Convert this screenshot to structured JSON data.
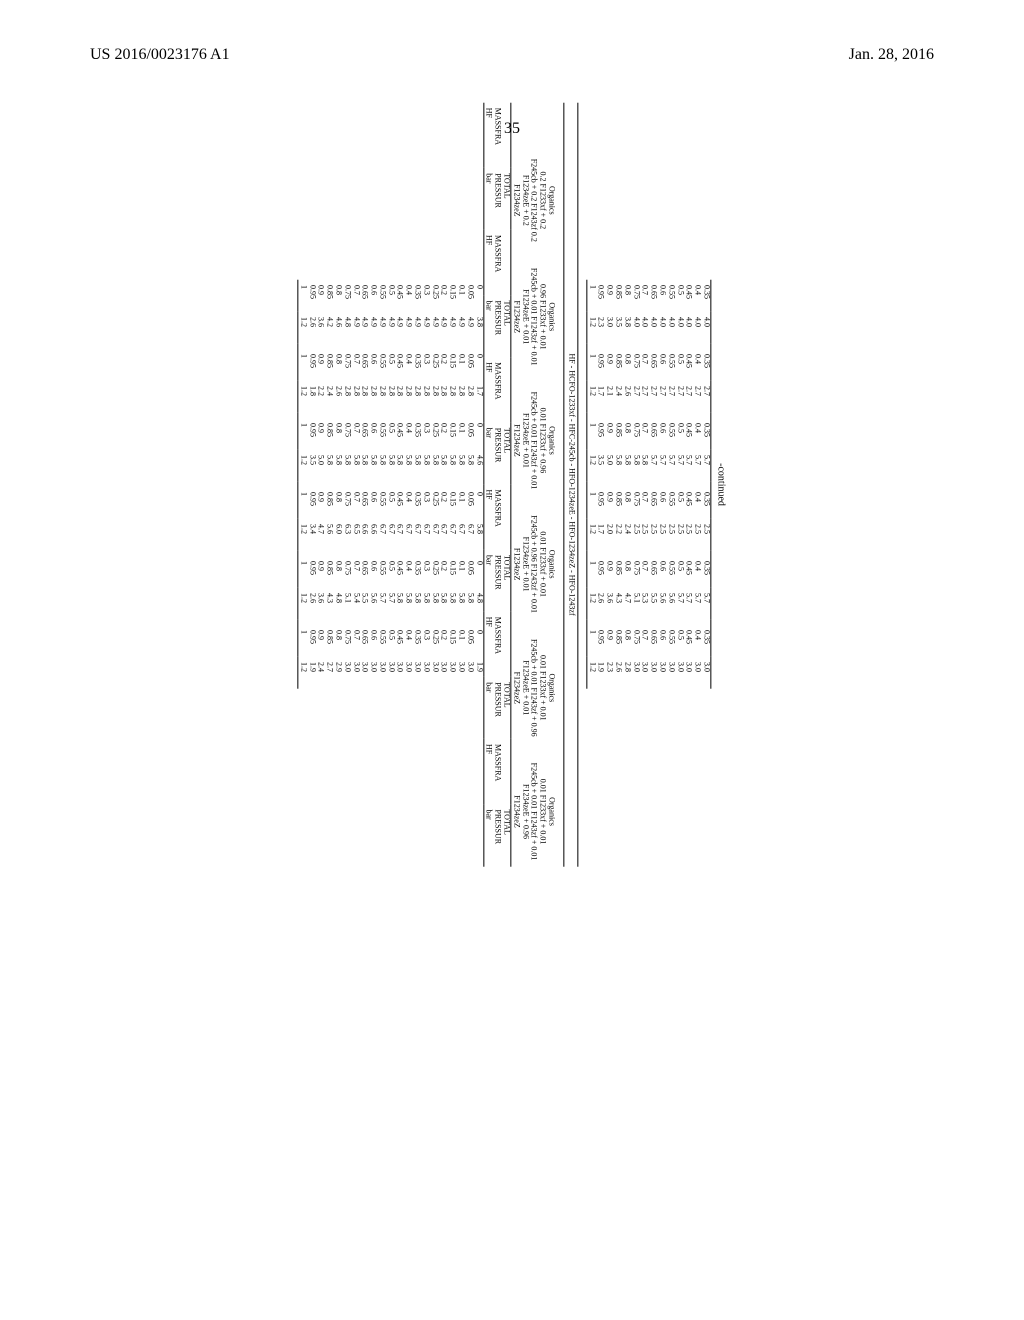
{
  "header": {
    "patent": "US 2016/0023176 A1",
    "date": "Jan. 28, 2016",
    "page": "35"
  },
  "labels": {
    "continued": "-continued",
    "section": "HF - HCFO-1233xf - HFC-245cb - HFO-1234zeE - HFO-1234zeZ - HFO-1243zf",
    "massfra": "MASSFRA",
    "hf": "HF",
    "total": "TOTAL",
    "pressur": "PRESSUR",
    "bar": "bar",
    "organics": "Organics"
  },
  "massfra_col": [
    "0.35",
    "0.4",
    "0.45",
    "0.5",
    "0.55",
    "0.6",
    "0.65",
    "0.7",
    "0.75",
    "0.8",
    "0.85",
    "0.9",
    "0.95",
    "1"
  ],
  "top": {
    "series": [
      [
        "4.0",
        "4.0",
        "4.0",
        "4.0",
        "4.0",
        "4.0",
        "4.0",
        "4.0",
        "4.0",
        "3.8",
        "3.5",
        "3.0",
        "2.3",
        "1.2"
      ],
      [
        "2.7",
        "2.7",
        "2.7",
        "2.7",
        "2.7",
        "2.7",
        "2.7",
        "2.7",
        "2.7",
        "2.6",
        "2.4",
        "2.1",
        "1.7",
        "1.2"
      ],
      [
        "5.7",
        "5.7",
        "5.7",
        "5.7",
        "5.7",
        "5.7",
        "5.7",
        "5.8",
        "5.8",
        "5.8",
        "5.8",
        "5.0",
        "3.5",
        "1.2"
      ],
      [
        "2.5",
        "2.5",
        "2.5",
        "2.5",
        "2.5",
        "2.5",
        "2.5",
        "2.5",
        "2.5",
        "2.4",
        "2.2",
        "2.0",
        "1.7",
        "1.2"
      ],
      [
        "5.7",
        "5.7",
        "5.7",
        "5.7",
        "5.6",
        "5.6",
        "5.5",
        "5.3",
        "5.1",
        "4.7",
        "4.3",
        "3.6",
        "2.6",
        "1.2"
      ],
      [
        "3.0",
        "3.0",
        "3.0",
        "3.0",
        "3.0",
        "3.0",
        "3.0",
        "3.0",
        "3.0",
        "2.8",
        "2.6",
        "2.3",
        "1.9",
        "1.2"
      ]
    ]
  },
  "organics": [
    {
      "l1": "0.2 F1233xf + 0.2",
      "l2": "F245cb + 0.2 F1243zf 0.2",
      "l3": "F1234zeE + 0.2",
      "l4": "F1234zeZ"
    },
    {
      "l1": "0.96 F1233xf + 0.01",
      "l2": "F245cb + 0.01 F1243zf + 0.01",
      "l3": "F1234zeE + 0.01",
      "l4": "F1234zeZ"
    },
    {
      "l1": "0.01 F1233xf + 0.96",
      "l2": "F245cb + 0.01 F1243zf + 0.01",
      "l3": "F1234zeE + 0.01",
      "l4": "F1234zeZ"
    },
    {
      "l1": "0.01 F1233xf + 0.01",
      "l2": "F245cb + 0.96 F1243zf + 0.01",
      "l3": "F1234zeE + 0.01",
      "l4": "F1234zeZ"
    },
    {
      "l1": "0.01 F1233xf + 0.01",
      "l2": "F245cb + 0.01 F1243zf + 0.96",
      "l3": "F1234zeE + 0.01",
      "l4": "F1234zeZ"
    },
    {
      "l1": "0.01 F1233xf + 0.01",
      "l2": "F245cb + 0.01 F1243zf + 0.01",
      "l3": "F1234zeE + 0.96",
      "l4": "F1234zeZ"
    }
  ],
  "main_massfra": [
    "0",
    "0.05",
    "0.1",
    "0.15",
    "0.2",
    "0.25",
    "0.3",
    "0.35",
    "0.4",
    "0.45",
    "0.5",
    "0.55",
    "0.6",
    "0.65",
    "0.7",
    "0.75",
    "0.8",
    "0.85",
    "0.9",
    "0.95",
    "1"
  ],
  "main": {
    "pressur": [
      [
        "3.8",
        "4.9",
        "4.9",
        "4.9",
        "4.9",
        "4.9",
        "4.9",
        "4.9",
        "4.9",
        "4.9",
        "4.9",
        "4.9",
        "4.9",
        "4.9",
        "4.9",
        "4.8",
        "4.6",
        "4.2",
        "3.6",
        "2.6",
        "1.2"
      ],
      [
        "1.7",
        "2.8",
        "2.8",
        "2.8",
        "2.8",
        "2.8",
        "2.8",
        "2.8",
        "2.8",
        "2.8",
        "2.8",
        "2.8",
        "2.8",
        "2.8",
        "2.8",
        "2.8",
        "2.6",
        "2.4",
        "2.2",
        "1.8",
        "1.2"
      ],
      [
        "4.6",
        "5.8",
        "5.8",
        "5.8",
        "5.8",
        "5.8",
        "5.8",
        "5.8",
        "5.8",
        "5.8",
        "5.8",
        "5.8",
        "5.8",
        "5.8",
        "5.8",
        "5.8",
        "5.8",
        "5.8",
        "5.0",
        "3.5",
        "1.2"
      ],
      [
        "5.8",
        "6.7",
        "6.7",
        "6.7",
        "6.7",
        "6.7",
        "6.7",
        "6.7",
        "6.7",
        "6.7",
        "6.7",
        "6.7",
        "6.6",
        "6.6",
        "6.5",
        "6.3",
        "6.0",
        "5.6",
        "4.7",
        "3.4",
        "1.2"
      ],
      [
        "4.8",
        "5.8",
        "5.8",
        "5.8",
        "5.8",
        "5.8",
        "5.8",
        "5.8",
        "5.8",
        "5.8",
        "5.7",
        "5.7",
        "5.6",
        "5.5",
        "5.4",
        "5.1",
        "4.8",
        "4.3",
        "3.6",
        "2.6",
        "1.2"
      ],
      [
        "1.9",
        "3.0",
        "3.0",
        "3.0",
        "3.0",
        "3.0",
        "3.0",
        "3.0",
        "3.0",
        "3.0",
        "3.0",
        "3.0",
        "3.0",
        "3.0",
        "3.0",
        "3.0",
        "2.9",
        "2.7",
        "2.4",
        "1.9",
        "1.2"
      ]
    ]
  },
  "style": {
    "font_family": "Times New Roman",
    "data_fontsize_pt": 8,
    "header_fontsize_pt": 16,
    "background": "#ffffff",
    "text_color": "#000000",
    "rule_color": "#000000",
    "rotation_deg": 90
  }
}
